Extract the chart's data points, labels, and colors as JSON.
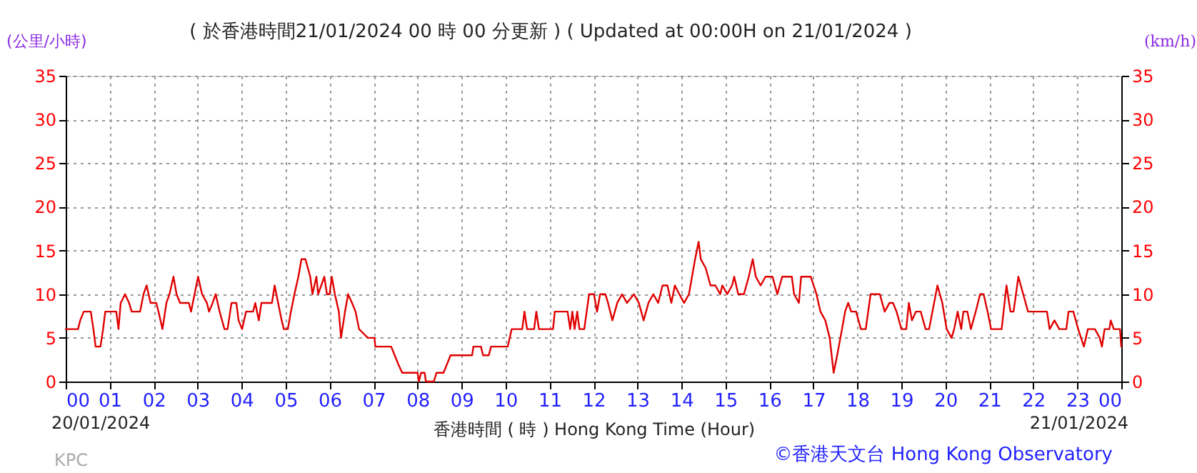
{
  "chart_data": {
    "type": "line",
    "title": "( 於香港時間21/01/2024 00 時 00 分更新 ) ( Updated at 00:00H on 21/01/2024 )",
    "xlabel": "香港時間 ( 時 ) Hong Kong Time (Hour)",
    "ylabel": "(公里/小時)",
    "y2label": "(km/h)",
    "annotations": [
      "20/01/2024",
      "21/01/2024",
      "KPC",
      "©香港天文台 Hong Kong Observatory"
    ],
    "series": [
      {
        "color": "#e00000",
        "x": [
          0,
          0.28,
          0.33,
          0.41,
          0.57,
          0.63,
          0.68,
          0.79,
          0.85,
          0.9,
          1.15,
          1.2,
          1.25,
          1.35,
          1.44,
          1.5,
          1.69,
          1.77,
          1.84,
          1.93,
          2.06,
          2.11,
          2.2,
          2.29,
          2.36,
          2.45,
          2.52,
          2.6,
          2.8,
          2.85,
          2.93,
          3.01,
          3.1,
          3.21,
          3.26,
          3.34,
          3.41,
          3.5,
          3.61,
          3.68,
          3.77,
          3.88,
          3.93,
          4.01,
          4.1,
          4.26,
          4.31,
          4.39,
          4.45,
          4.69,
          4.75,
          4.83,
          4.91,
          4.96,
          5.05,
          5.12,
          5.2,
          5.29,
          5.36,
          5.45,
          5.56,
          5.61,
          5.7,
          5.74,
          5.81,
          5.88,
          5.94,
          6.0,
          6.05,
          6.12,
          6.21,
          6.26,
          6.35,
          6.42,
          6.51,
          6.59,
          6.67,
          6.87,
          7.02,
          7.04,
          7.4,
          7.48,
          7.56,
          7.65,
          8.0,
          8.03,
          8.08,
          8.16,
          8.19,
          8.37,
          8.43,
          8.59,
          8.67,
          8.75,
          9.24,
          9.27,
          9.44,
          9.49,
          9.62,
          9.67,
          10.05,
          10.14,
          10.38,
          10.43,
          10.49,
          10.65,
          10.7,
          10.76,
          11.08,
          11.12,
          11.41,
          11.47,
          11.52,
          11.57,
          11.63,
          11.68,
          11.79,
          11.9,
          12.01,
          12.08,
          12.15,
          12.22,
          12.27,
          12.33,
          12.43,
          12.54,
          12.65,
          12.76,
          12.92,
          13.03,
          13.14,
          13.25,
          13.36,
          13.47,
          13.57,
          13.68,
          13.77,
          13.85,
          13.95,
          14.06,
          14.17,
          14.31,
          14.39,
          14.44,
          14.55,
          14.66,
          14.77,
          14.88,
          14.93,
          15.04,
          15.15,
          15.2,
          15.29,
          15.42,
          15.53,
          15.62,
          15.69,
          15.8,
          15.91,
          16.07,
          16.18,
          16.29,
          16.51,
          16.56,
          16.67,
          16.72,
          16.94,
          17.07,
          17.16,
          17.27,
          17.37,
          17.46,
          17.54,
          17.65,
          17.72,
          17.79,
          17.86,
          17.97,
          18.08,
          18.19,
          18.3,
          18.51,
          18.62,
          18.73,
          18.81,
          18.89,
          19.0,
          19.11,
          19.17,
          19.24,
          19.33,
          19.44,
          19.55,
          19.63,
          19.82,
          19.93,
          20.03,
          20.14,
          20.2,
          20.28,
          20.36,
          20.41,
          20.5,
          20.58,
          20.69,
          20.79,
          20.87,
          20.96,
          21.04,
          21.12,
          21.28,
          21.39,
          21.48,
          21.55,
          21.66,
          21.77,
          21.88,
          22.31,
          22.37,
          22.48,
          22.59,
          22.75,
          22.8,
          22.91,
          23.02,
          23.15,
          23.24,
          23.4,
          23.51,
          23.56,
          23.62,
          23.73,
          23.76,
          23.83,
          23.97,
          24.0
        ],
        "values": [
          6,
          6,
          7,
          8,
          8,
          6,
          4,
          4,
          6,
          8,
          8,
          6,
          9,
          10,
          9,
          8,
          8,
          10,
          11,
          9,
          9,
          8,
          6,
          9,
          10,
          12,
          10,
          9,
          9,
          8,
          10,
          12,
          10,
          9,
          8,
          9,
          10,
          8,
          6,
          6,
          9,
          9,
          7,
          6,
          8,
          8,
          9,
          7,
          9,
          9,
          11,
          9,
          7,
          6,
          6,
          8,
          10,
          12,
          14,
          14,
          12,
          10,
          12,
          10,
          11,
          12,
          10,
          10,
          12,
          10,
          8,
          5,
          8,
          10,
          9,
          8,
          6,
          5,
          5,
          4,
          4,
          3,
          2,
          1,
          1,
          0,
          1,
          1,
          0,
          0,
          1,
          1,
          2,
          3,
          3,
          4,
          4,
          3,
          3,
          4,
          4,
          6,
          6,
          8,
          6,
          6,
          8,
          6,
          6,
          8,
          8,
          6,
          8,
          6,
          8,
          6,
          6,
          10,
          10,
          8,
          10,
          10,
          10,
          9,
          7,
          9,
          10,
          9,
          10,
          9,
          7,
          9,
          10,
          9,
          11,
          11,
          9,
          11,
          10,
          9,
          10,
          14,
          16,
          14,
          13,
          11,
          11,
          10,
          11,
          10,
          11,
          12,
          10,
          10,
          12,
          14,
          12,
          11,
          12,
          12,
          10,
          12,
          12,
          10,
          9,
          12,
          12,
          10,
          8,
          7,
          5,
          1,
          3,
          6,
          8,
          9,
          8,
          8,
          6,
          6,
          10,
          10,
          8,
          9,
          9,
          8,
          6,
          6,
          9,
          7,
          8,
          8,
          6,
          6,
          11,
          9,
          6,
          5,
          6,
          8,
          6,
          8,
          8,
          6,
          8,
          10,
          10,
          8,
          6,
          6,
          6,
          11,
          8,
          8,
          12,
          10,
          8,
          8,
          6,
          7,
          6,
          6,
          8,
          8,
          6,
          4,
          6,
          6,
          5,
          4,
          6,
          6,
          7,
          6,
          6,
          4
        ]
      }
    ],
    "xlim": [
      0,
      24
    ],
    "xticks": [
      {
        "value": 0,
        "label": "00"
      },
      {
        "value": 1,
        "label": "01"
      },
      {
        "value": 2,
        "label": "02"
      },
      {
        "value": 3,
        "label": "03"
      },
      {
        "value": 4,
        "label": "04"
      },
      {
        "value": 5,
        "label": "05"
      },
      {
        "value": 6,
        "label": "06"
      },
      {
        "value": 7,
        "label": "07"
      },
      {
        "value": 8,
        "label": "08"
      },
      {
        "value": 9,
        "label": "09"
      },
      10,
      11,
      12,
      13,
      14,
      15,
      16,
      17,
      18,
      19,
      20,
      21,
      22,
      23,
      {
        "value": 24,
        "label": "00"
      }
    ],
    "ylim": [
      0,
      35
    ],
    "yticks": [
      0,
      5,
      10,
      15,
      20,
      25,
      30,
      35
    ],
    "y2lim": [
      0,
      35
    ],
    "y2ticks": [
      0,
      5,
      10,
      15,
      20,
      25,
      30,
      35
    ],
    "grid": true,
    "marker": "none",
    "line_style": "solid"
  }
}
